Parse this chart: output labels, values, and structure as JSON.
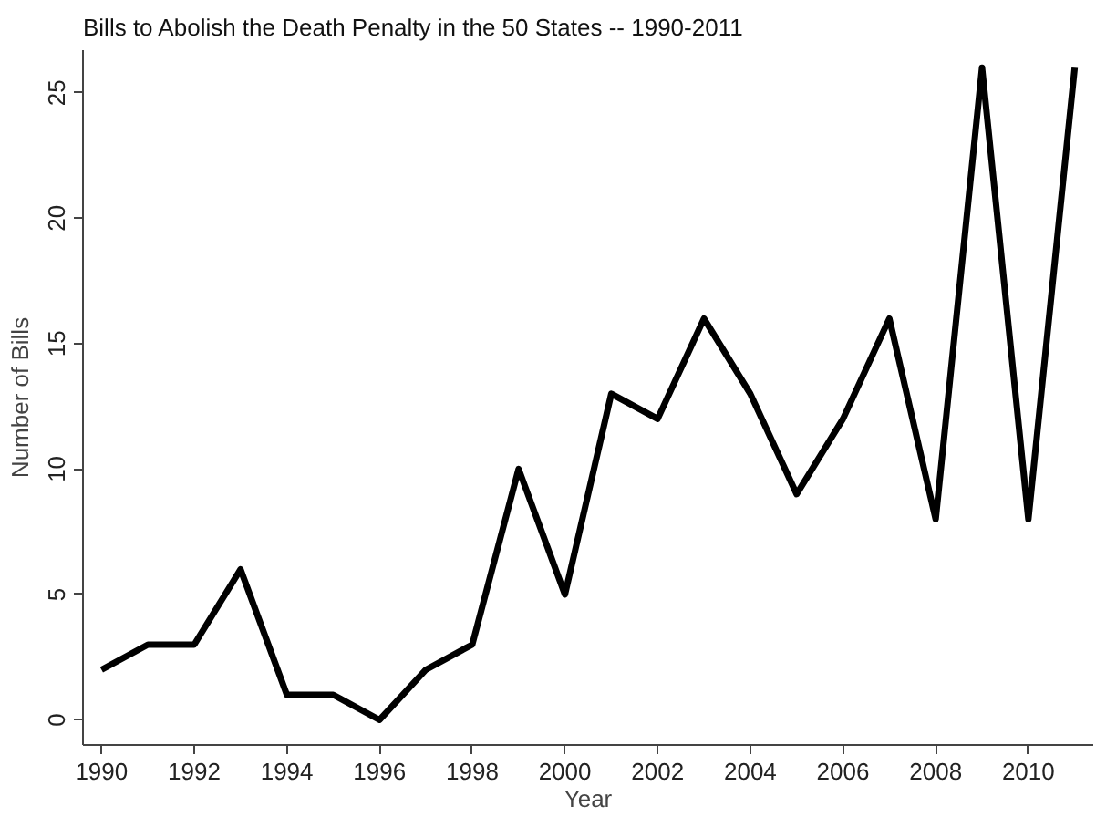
{
  "chart_data": {
    "type": "line",
    "title": "Bills to Abolish the Death Penalty in the 50 States -- 1990-2011",
    "xlabel": "Year",
    "ylabel": "Number of Bills",
    "x": [
      1990,
      1991,
      1992,
      1993,
      1994,
      1995,
      1996,
      1997,
      1998,
      1999,
      2000,
      2001,
      2002,
      2003,
      2004,
      2005,
      2006,
      2007,
      2008,
      2009,
      2010,
      2011
    ],
    "series": [
      {
        "color": "#000000",
        "values": [
          2,
          3,
          3,
          6,
          1,
          1,
          0,
          2,
          3,
          10,
          5,
          13,
          12,
          16,
          13,
          9,
          12,
          16,
          8,
          26,
          8,
          26
        ]
      }
    ],
    "xlim": [
      1989.6,
      2011.4
    ],
    "ylim": [
      -1,
      26.7
    ],
    "xticks": [
      1990,
      1992,
      1994,
      1996,
      1998,
      2000,
      2002,
      2004,
      2006,
      2008,
      2010
    ],
    "yticks": [
      0,
      5,
      10,
      15,
      20,
      25
    ],
    "grid": false,
    "line_style": "solid",
    "marker": "none"
  }
}
